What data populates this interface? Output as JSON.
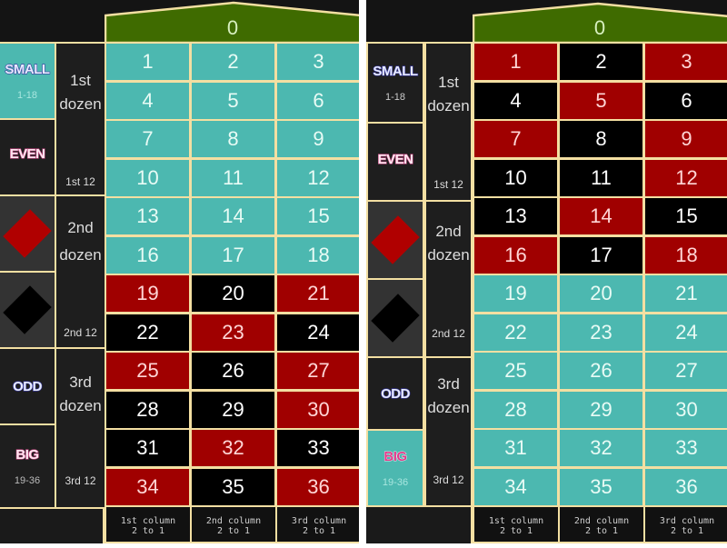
{
  "colors": {
    "zero_green": "#3f6b00",
    "teal": "#4cb8b0",
    "red": "#a00000",
    "black": "#000000",
    "border": "#f3dfa2",
    "panel_bg": "#141414"
  },
  "panels": [
    {
      "id": "left",
      "zero": {
        "label": "0"
      },
      "outside_bets": {
        "small": {
          "label": "SMALL",
          "range": "1-18",
          "highlighted": true
        },
        "even": {
          "label": "EVEN",
          "highlighted": false
        },
        "red": {
          "icon": "red-diamond",
          "highlighted": false
        },
        "black": {
          "icon": "black-diamond",
          "highlighted": false
        },
        "odd": {
          "label": "ODD",
          "highlighted": false
        },
        "big": {
          "label": "BIG",
          "range": "19-36",
          "highlighted": false
        }
      },
      "dozens": [
        {
          "title_line1": "1st",
          "title_line2": "dozen",
          "label": "1st 12"
        },
        {
          "title_line1": "2nd",
          "title_line2": "dozen",
          "label": "2nd 12"
        },
        {
          "title_line1": "3rd",
          "title_line2": "dozen",
          "label": "3rd 12"
        }
      ],
      "rows": [
        [
          {
            "n": "1",
            "c": "teal"
          },
          {
            "n": "2",
            "c": "teal"
          },
          {
            "n": "3",
            "c": "teal"
          }
        ],
        [
          {
            "n": "4",
            "c": "teal"
          },
          {
            "n": "5",
            "c": "teal"
          },
          {
            "n": "6",
            "c": "teal"
          }
        ],
        [
          {
            "n": "7",
            "c": "teal"
          },
          {
            "n": "8",
            "c": "teal"
          },
          {
            "n": "9",
            "c": "teal"
          }
        ],
        [
          {
            "n": "10",
            "c": "teal"
          },
          {
            "n": "11",
            "c": "teal"
          },
          {
            "n": "12",
            "c": "teal"
          }
        ],
        [
          {
            "n": "13",
            "c": "teal"
          },
          {
            "n": "14",
            "c": "teal"
          },
          {
            "n": "15",
            "c": "teal"
          }
        ],
        [
          {
            "n": "16",
            "c": "teal"
          },
          {
            "n": "17",
            "c": "teal"
          },
          {
            "n": "18",
            "c": "teal"
          }
        ],
        [
          {
            "n": "19",
            "c": "red"
          },
          {
            "n": "20",
            "c": "black"
          },
          {
            "n": "21",
            "c": "red"
          }
        ],
        [
          {
            "n": "22",
            "c": "black"
          },
          {
            "n": "23",
            "c": "red"
          },
          {
            "n": "24",
            "c": "black"
          }
        ],
        [
          {
            "n": "25",
            "c": "red"
          },
          {
            "n": "26",
            "c": "black"
          },
          {
            "n": "27",
            "c": "red"
          }
        ],
        [
          {
            "n": "28",
            "c": "black"
          },
          {
            "n": "29",
            "c": "black"
          },
          {
            "n": "30",
            "c": "red"
          }
        ],
        [
          {
            "n": "31",
            "c": "black"
          },
          {
            "n": "32",
            "c": "red"
          },
          {
            "n": "33",
            "c": "black"
          }
        ],
        [
          {
            "n": "34",
            "c": "red"
          },
          {
            "n": "35",
            "c": "black"
          },
          {
            "n": "36",
            "c": "red"
          }
        ]
      ],
      "columns": [
        {
          "line1": "1st column",
          "line2": "2 to 1"
        },
        {
          "line1": "2nd column",
          "line2": "2 to 1"
        },
        {
          "line1": "3rd column",
          "line2": "2 to 1"
        }
      ]
    },
    {
      "id": "right",
      "zero": {
        "label": "0"
      },
      "outside_bets": {
        "small": {
          "label": "SMALL",
          "range": "1-18",
          "highlighted": false
        },
        "even": {
          "label": "EVEN",
          "highlighted": false
        },
        "red": {
          "icon": "red-diamond",
          "highlighted": false
        },
        "black": {
          "icon": "black-diamond",
          "highlighted": false
        },
        "odd": {
          "label": "ODD",
          "highlighted": false
        },
        "big": {
          "label": "BIG",
          "range": "19-36",
          "highlighted": true
        }
      },
      "dozens": [
        {
          "title_line1": "1st",
          "title_line2": "dozen",
          "label": "1st 12"
        },
        {
          "title_line1": "2nd",
          "title_line2": "dozen",
          "label": "2nd 12"
        },
        {
          "title_line1": "3rd",
          "title_line2": "dozen",
          "label": "3rd 12"
        }
      ],
      "rows": [
        [
          {
            "n": "1",
            "c": "red"
          },
          {
            "n": "2",
            "c": "black"
          },
          {
            "n": "3",
            "c": "red"
          }
        ],
        [
          {
            "n": "4",
            "c": "black"
          },
          {
            "n": "5",
            "c": "red"
          },
          {
            "n": "6",
            "c": "black"
          }
        ],
        [
          {
            "n": "7",
            "c": "red"
          },
          {
            "n": "8",
            "c": "black"
          },
          {
            "n": "9",
            "c": "red"
          }
        ],
        [
          {
            "n": "10",
            "c": "black"
          },
          {
            "n": "11",
            "c": "black"
          },
          {
            "n": "12",
            "c": "red"
          }
        ],
        [
          {
            "n": "13",
            "c": "black"
          },
          {
            "n": "14",
            "c": "red"
          },
          {
            "n": "15",
            "c": "black"
          }
        ],
        [
          {
            "n": "16",
            "c": "red"
          },
          {
            "n": "17",
            "c": "black"
          },
          {
            "n": "18",
            "c": "red"
          }
        ],
        [
          {
            "n": "19",
            "c": "teal"
          },
          {
            "n": "20",
            "c": "teal"
          },
          {
            "n": "21",
            "c": "teal"
          }
        ],
        [
          {
            "n": "22",
            "c": "teal"
          },
          {
            "n": "23",
            "c": "teal"
          },
          {
            "n": "24",
            "c": "teal"
          }
        ],
        [
          {
            "n": "25",
            "c": "teal"
          },
          {
            "n": "26",
            "c": "teal"
          },
          {
            "n": "27",
            "c": "teal"
          }
        ],
        [
          {
            "n": "28",
            "c": "teal"
          },
          {
            "n": "29",
            "c": "teal"
          },
          {
            "n": "30",
            "c": "teal"
          }
        ],
        [
          {
            "n": "31",
            "c": "teal"
          },
          {
            "n": "32",
            "c": "teal"
          },
          {
            "n": "33",
            "c": "teal"
          }
        ],
        [
          {
            "n": "34",
            "c": "teal"
          },
          {
            "n": "35",
            "c": "teal"
          },
          {
            "n": "36",
            "c": "teal"
          }
        ]
      ],
      "columns": [
        {
          "line1": "1st column",
          "line2": "2 to 1"
        },
        {
          "line1": "2nd column",
          "line2": "2 to 1"
        },
        {
          "line1": "3rd column",
          "line2": "2 to 1"
        }
      ]
    }
  ]
}
